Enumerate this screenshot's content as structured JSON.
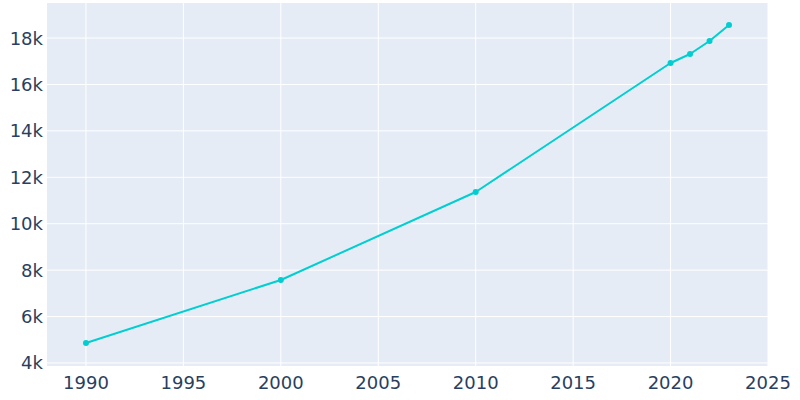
{
  "chart_data": {
    "type": "line",
    "x": [
      1990,
      2000,
      2010,
      2020,
      2021,
      2022,
      2023
    ],
    "values": [
      4862,
      7576,
      11367,
      16925,
      17313,
      17873,
      18563
    ],
    "color": "#00ced1",
    "marker": "circle",
    "xlim": [
      1988,
      2025
    ],
    "xticks": [
      1990,
      1995,
      2000,
      2005,
      2010,
      2015,
      2020,
      2025
    ],
    "ylim": [
      3870,
      19510
    ],
    "yticks": [
      {
        "value": 4000,
        "label": "4k"
      },
      {
        "value": 6000,
        "label": "6k"
      },
      {
        "value": 8000,
        "label": "8k"
      },
      {
        "value": 10000,
        "label": "10k"
      },
      {
        "value": 12000,
        "label": "12k"
      },
      {
        "value": 14000,
        "label": "14k"
      },
      {
        "value": 16000,
        "label": "16k"
      },
      {
        "value": 18000,
        "label": "18k"
      }
    ],
    "grid": true
  }
}
